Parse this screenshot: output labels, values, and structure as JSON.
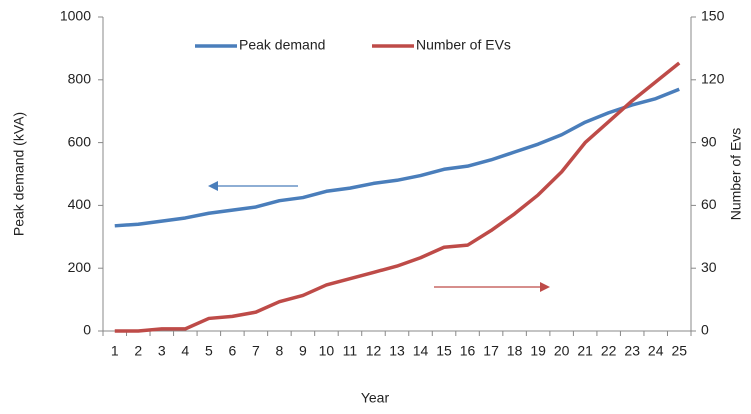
{
  "chart_data": {
    "type": "line",
    "xlabel": "Year",
    "ylabel": "Peak demand (kVA)",
    "y2label": "Number of Evs",
    "categories": [
      "1",
      "2",
      "3",
      "4",
      "5",
      "6",
      "7",
      "8",
      "9",
      "10",
      "11",
      "12",
      "13",
      "14",
      "15",
      "16",
      "17",
      "18",
      "19",
      "20",
      "21",
      "22",
      "23",
      "24",
      "25"
    ],
    "series": [
      {
        "name": "Peak demand",
        "color": "#4a7ebb",
        "values": [
          335,
          340,
          350,
          360,
          375,
          385,
          395,
          415,
          425,
          445,
          455,
          470,
          480,
          495,
          515,
          525,
          545,
          570,
          595,
          625,
          665,
          695,
          720,
          740,
          770
        ]
      },
      {
        "name": "Number of EVs",
        "color": "#be4b48",
        "axis": "y2",
        "values": [
          0,
          0,
          1,
          1,
          6,
          7,
          9,
          14,
          17,
          22,
          25,
          28,
          31,
          35,
          40,
          41,
          48,
          56,
          65,
          76,
          90,
          100,
          110,
          119,
          128
        ]
      }
    ],
    "ylim": [
      0,
      1000
    ],
    "yticks": [
      0,
      200,
      400,
      600,
      800,
      1000
    ],
    "y2lim": [
      0,
      150
    ],
    "y2ticks": [
      0,
      30,
      60,
      90,
      120,
      150
    ],
    "legend": "top"
  }
}
